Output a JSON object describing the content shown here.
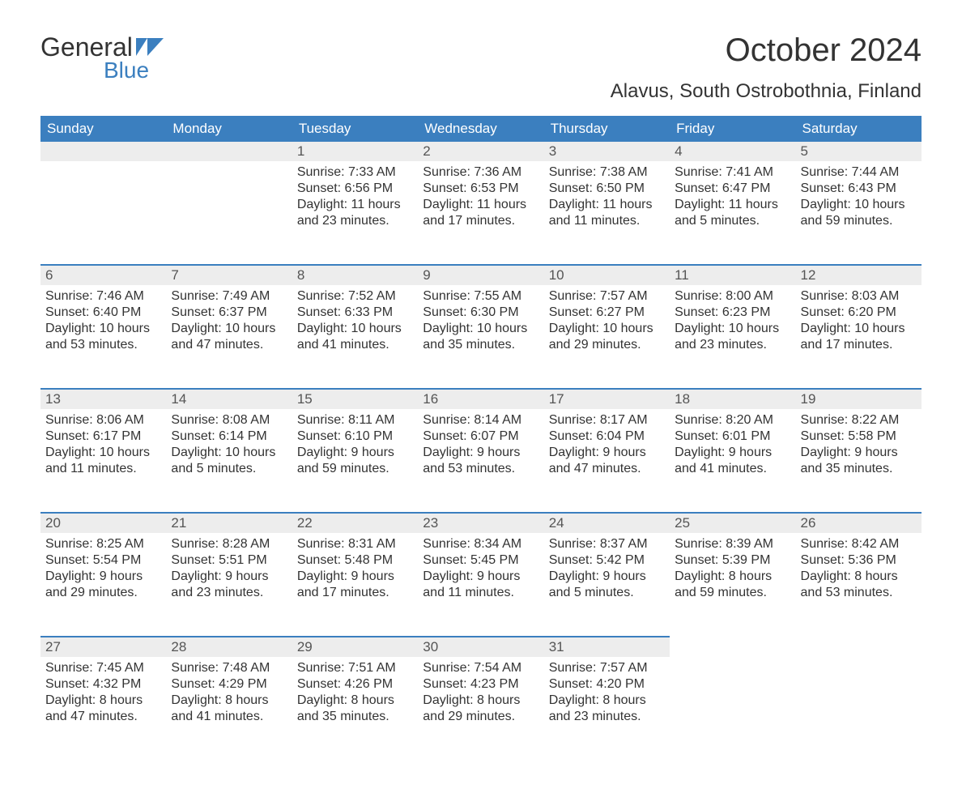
{
  "logo": {
    "word1": "General",
    "word2": "Blue"
  },
  "title": "October 2024",
  "location": "Alavus, South Ostrobothnia, Finland",
  "colors": {
    "header_bg": "#3b7fbf",
    "header_fg": "#ffffff",
    "daynum_bg": "#ededed",
    "body_bg": "#ffffff",
    "text": "#333333",
    "accent": "#3b7fbf"
  },
  "weekdays": [
    "Sunday",
    "Monday",
    "Tuesday",
    "Wednesday",
    "Thursday",
    "Friday",
    "Saturday"
  ],
  "weeks": [
    [
      null,
      null,
      {
        "n": "1",
        "sr": "Sunrise: 7:33 AM",
        "ss": "Sunset: 6:56 PM",
        "d1": "Daylight: 11 hours",
        "d2": "and 23 minutes."
      },
      {
        "n": "2",
        "sr": "Sunrise: 7:36 AM",
        "ss": "Sunset: 6:53 PM",
        "d1": "Daylight: 11 hours",
        "d2": "and 17 minutes."
      },
      {
        "n": "3",
        "sr": "Sunrise: 7:38 AM",
        "ss": "Sunset: 6:50 PM",
        "d1": "Daylight: 11 hours",
        "d2": "and 11 minutes."
      },
      {
        "n": "4",
        "sr": "Sunrise: 7:41 AM",
        "ss": "Sunset: 6:47 PM",
        "d1": "Daylight: 11 hours",
        "d2": "and 5 minutes."
      },
      {
        "n": "5",
        "sr": "Sunrise: 7:44 AM",
        "ss": "Sunset: 6:43 PM",
        "d1": "Daylight: 10 hours",
        "d2": "and 59 minutes."
      }
    ],
    [
      {
        "n": "6",
        "sr": "Sunrise: 7:46 AM",
        "ss": "Sunset: 6:40 PM",
        "d1": "Daylight: 10 hours",
        "d2": "and 53 minutes."
      },
      {
        "n": "7",
        "sr": "Sunrise: 7:49 AM",
        "ss": "Sunset: 6:37 PM",
        "d1": "Daylight: 10 hours",
        "d2": "and 47 minutes."
      },
      {
        "n": "8",
        "sr": "Sunrise: 7:52 AM",
        "ss": "Sunset: 6:33 PM",
        "d1": "Daylight: 10 hours",
        "d2": "and 41 minutes."
      },
      {
        "n": "9",
        "sr": "Sunrise: 7:55 AM",
        "ss": "Sunset: 6:30 PM",
        "d1": "Daylight: 10 hours",
        "d2": "and 35 minutes."
      },
      {
        "n": "10",
        "sr": "Sunrise: 7:57 AM",
        "ss": "Sunset: 6:27 PM",
        "d1": "Daylight: 10 hours",
        "d2": "and 29 minutes."
      },
      {
        "n": "11",
        "sr": "Sunrise: 8:00 AM",
        "ss": "Sunset: 6:23 PM",
        "d1": "Daylight: 10 hours",
        "d2": "and 23 minutes."
      },
      {
        "n": "12",
        "sr": "Sunrise: 8:03 AM",
        "ss": "Sunset: 6:20 PM",
        "d1": "Daylight: 10 hours",
        "d2": "and 17 minutes."
      }
    ],
    [
      {
        "n": "13",
        "sr": "Sunrise: 8:06 AM",
        "ss": "Sunset: 6:17 PM",
        "d1": "Daylight: 10 hours",
        "d2": "and 11 minutes."
      },
      {
        "n": "14",
        "sr": "Sunrise: 8:08 AM",
        "ss": "Sunset: 6:14 PM",
        "d1": "Daylight: 10 hours",
        "d2": "and 5 minutes."
      },
      {
        "n": "15",
        "sr": "Sunrise: 8:11 AM",
        "ss": "Sunset: 6:10 PM",
        "d1": "Daylight: 9 hours",
        "d2": "and 59 minutes."
      },
      {
        "n": "16",
        "sr": "Sunrise: 8:14 AM",
        "ss": "Sunset: 6:07 PM",
        "d1": "Daylight: 9 hours",
        "d2": "and 53 minutes."
      },
      {
        "n": "17",
        "sr": "Sunrise: 8:17 AM",
        "ss": "Sunset: 6:04 PM",
        "d1": "Daylight: 9 hours",
        "d2": "and 47 minutes."
      },
      {
        "n": "18",
        "sr": "Sunrise: 8:20 AM",
        "ss": "Sunset: 6:01 PM",
        "d1": "Daylight: 9 hours",
        "d2": "and 41 minutes."
      },
      {
        "n": "19",
        "sr": "Sunrise: 8:22 AM",
        "ss": "Sunset: 5:58 PM",
        "d1": "Daylight: 9 hours",
        "d2": "and 35 minutes."
      }
    ],
    [
      {
        "n": "20",
        "sr": "Sunrise: 8:25 AM",
        "ss": "Sunset: 5:54 PM",
        "d1": "Daylight: 9 hours",
        "d2": "and 29 minutes."
      },
      {
        "n": "21",
        "sr": "Sunrise: 8:28 AM",
        "ss": "Sunset: 5:51 PM",
        "d1": "Daylight: 9 hours",
        "d2": "and 23 minutes."
      },
      {
        "n": "22",
        "sr": "Sunrise: 8:31 AM",
        "ss": "Sunset: 5:48 PM",
        "d1": "Daylight: 9 hours",
        "d2": "and 17 minutes."
      },
      {
        "n": "23",
        "sr": "Sunrise: 8:34 AM",
        "ss": "Sunset: 5:45 PM",
        "d1": "Daylight: 9 hours",
        "d2": "and 11 minutes."
      },
      {
        "n": "24",
        "sr": "Sunrise: 8:37 AM",
        "ss": "Sunset: 5:42 PM",
        "d1": "Daylight: 9 hours",
        "d2": "and 5 minutes."
      },
      {
        "n": "25",
        "sr": "Sunrise: 8:39 AM",
        "ss": "Sunset: 5:39 PM",
        "d1": "Daylight: 8 hours",
        "d2": "and 59 minutes."
      },
      {
        "n": "26",
        "sr": "Sunrise: 8:42 AM",
        "ss": "Sunset: 5:36 PM",
        "d1": "Daylight: 8 hours",
        "d2": "and 53 minutes."
      }
    ],
    [
      {
        "n": "27",
        "sr": "Sunrise: 7:45 AM",
        "ss": "Sunset: 4:32 PM",
        "d1": "Daylight: 8 hours",
        "d2": "and 47 minutes."
      },
      {
        "n": "28",
        "sr": "Sunrise: 7:48 AM",
        "ss": "Sunset: 4:29 PM",
        "d1": "Daylight: 8 hours",
        "d2": "and 41 minutes."
      },
      {
        "n": "29",
        "sr": "Sunrise: 7:51 AM",
        "ss": "Sunset: 4:26 PM",
        "d1": "Daylight: 8 hours",
        "d2": "and 35 minutes."
      },
      {
        "n": "30",
        "sr": "Sunrise: 7:54 AM",
        "ss": "Sunset: 4:23 PM",
        "d1": "Daylight: 8 hours",
        "d2": "and 29 minutes."
      },
      {
        "n": "31",
        "sr": "Sunrise: 7:57 AM",
        "ss": "Sunset: 4:20 PM",
        "d1": "Daylight: 8 hours",
        "d2": "and 23 minutes."
      },
      null,
      null
    ]
  ]
}
